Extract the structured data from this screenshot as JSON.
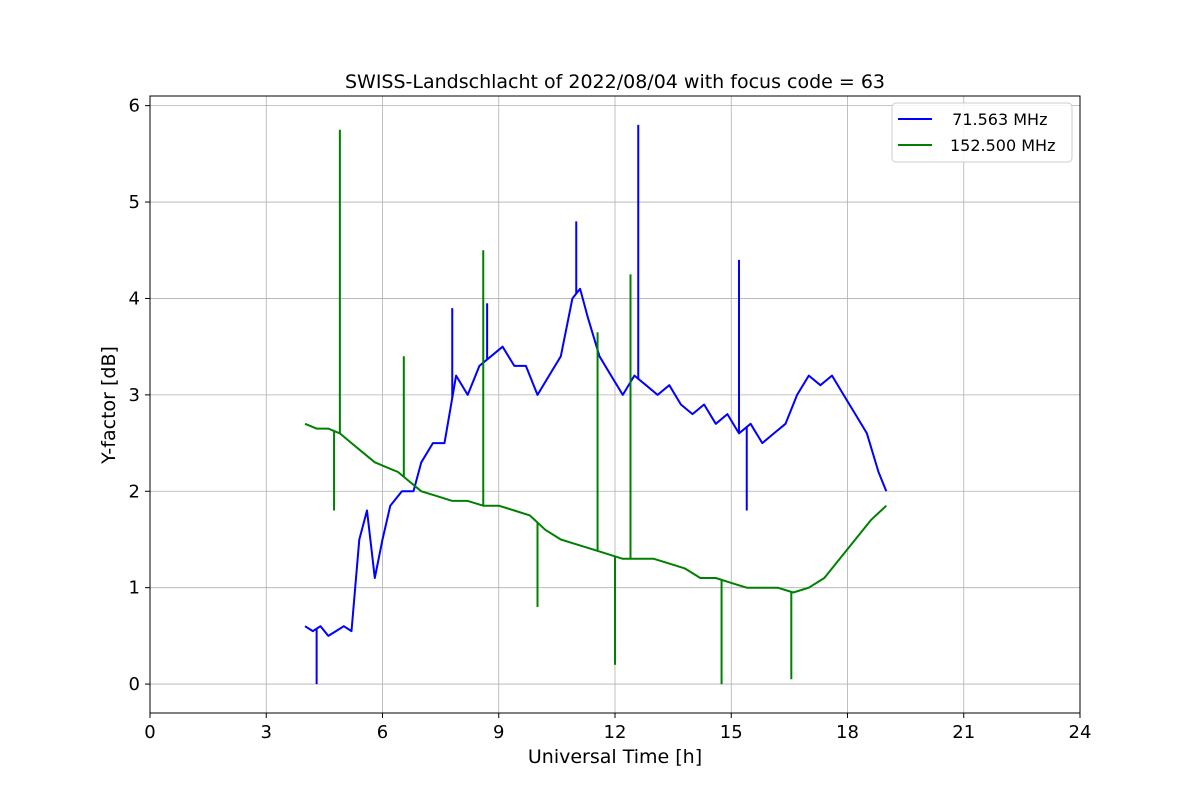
{
  "chart_data": {
    "type": "line",
    "title": "SWISS-Landschlacht of 2022/08/04 with focus code = 63",
    "xlabel": "Universal Time [h]",
    "ylabel": "Y-factor [dB]",
    "xlim": [
      0,
      24
    ],
    "ylim": [
      -0.3,
      6.1
    ],
    "xticks": [
      "0",
      "3",
      "6",
      "9",
      "12",
      "15",
      "18",
      "21",
      "24"
    ],
    "yticks": [
      "0",
      "1",
      "2",
      "3",
      "4",
      "5",
      "6"
    ],
    "grid": true,
    "legend_position": "top-right",
    "series": [
      {
        "name": "71.563 MHz",
        "legend_label": "  71.563 MHz",
        "color": "#0000ff",
        "x": [
          4.0,
          4.2,
          4.4,
          4.6,
          4.8,
          5.0,
          5.2,
          5.4,
          5.6,
          5.8,
          6.0,
          6.2,
          6.5,
          6.8,
          7.0,
          7.3,
          7.6,
          7.9,
          8.2,
          8.5,
          8.8,
          9.1,
          9.4,
          9.7,
          10.0,
          10.3,
          10.6,
          10.9,
          11.1,
          11.3,
          11.6,
          11.9,
          12.2,
          12.5,
          12.8,
          13.1,
          13.4,
          13.7,
          14.0,
          14.3,
          14.6,
          14.9,
          15.2,
          15.5,
          15.8,
          16.1,
          16.4,
          16.7,
          17.0,
          17.3,
          17.6,
          17.9,
          18.2,
          18.5,
          18.8,
          19.0
        ],
        "y": [
          0.6,
          0.55,
          0.6,
          0.5,
          0.55,
          0.6,
          0.55,
          1.5,
          1.8,
          1.1,
          1.5,
          1.85,
          2.0,
          2.0,
          2.3,
          2.5,
          2.5,
          3.2,
          3.0,
          3.3,
          3.4,
          3.5,
          3.3,
          3.3,
          3.0,
          3.2,
          3.4,
          4.0,
          4.1,
          3.8,
          3.4,
          3.2,
          3.0,
          3.2,
          3.1,
          3.0,
          3.1,
          2.9,
          2.8,
          2.9,
          2.7,
          2.8,
          2.6,
          2.7,
          2.5,
          2.6,
          2.7,
          3.0,
          3.2,
          3.1,
          3.2,
          3.0,
          2.8,
          2.6,
          2.2,
          2.0
        ],
        "spikes": [
          {
            "x": 4.3,
            "y": 0.0
          },
          {
            "x": 7.8,
            "y": 3.9
          },
          {
            "x": 8.7,
            "y": 3.95
          },
          {
            "x": 11.0,
            "y": 4.8
          },
          {
            "x": 12.6,
            "y": 5.8
          },
          {
            "x": 15.2,
            "y": 4.4
          },
          {
            "x": 15.4,
            "y": 1.8
          }
        ]
      },
      {
        "name": "152.500 MHz",
        "legend_label": "152.500 MHz",
        "color": "#008000",
        "x": [
          4.0,
          4.3,
          4.6,
          4.9,
          5.2,
          5.5,
          5.8,
          6.1,
          6.4,
          6.7,
          7.0,
          7.4,
          7.8,
          8.2,
          8.6,
          9.0,
          9.4,
          9.8,
          10.2,
          10.6,
          11.0,
          11.4,
          11.8,
          12.2,
          12.6,
          13.0,
          13.4,
          13.8,
          14.2,
          14.6,
          15.0,
          15.4,
          15.8,
          16.2,
          16.6,
          17.0,
          17.4,
          17.8,
          18.2,
          18.6,
          19.0
        ],
        "y": [
          2.7,
          2.65,
          2.65,
          2.6,
          2.5,
          2.4,
          2.3,
          2.25,
          2.2,
          2.1,
          2.0,
          1.95,
          1.9,
          1.9,
          1.85,
          1.85,
          1.8,
          1.75,
          1.6,
          1.5,
          1.45,
          1.4,
          1.35,
          1.3,
          1.3,
          1.3,
          1.25,
          1.2,
          1.1,
          1.1,
          1.05,
          1.0,
          1.0,
          1.0,
          0.95,
          1.0,
          1.1,
          1.3,
          1.5,
          1.7,
          1.85
        ],
        "spikes": [
          {
            "x": 4.9,
            "y": 5.75
          },
          {
            "x": 4.75,
            "y": 1.8
          },
          {
            "x": 6.55,
            "y": 3.4
          },
          {
            "x": 8.6,
            "y": 4.5
          },
          {
            "x": 10.0,
            "y": 0.8
          },
          {
            "x": 11.55,
            "y": 3.65
          },
          {
            "x": 12.0,
            "y": 0.2
          },
          {
            "x": 12.4,
            "y": 4.25
          },
          {
            "x": 14.75,
            "y": 0.0
          },
          {
            "x": 16.55,
            "y": 0.05
          }
        ]
      }
    ]
  }
}
